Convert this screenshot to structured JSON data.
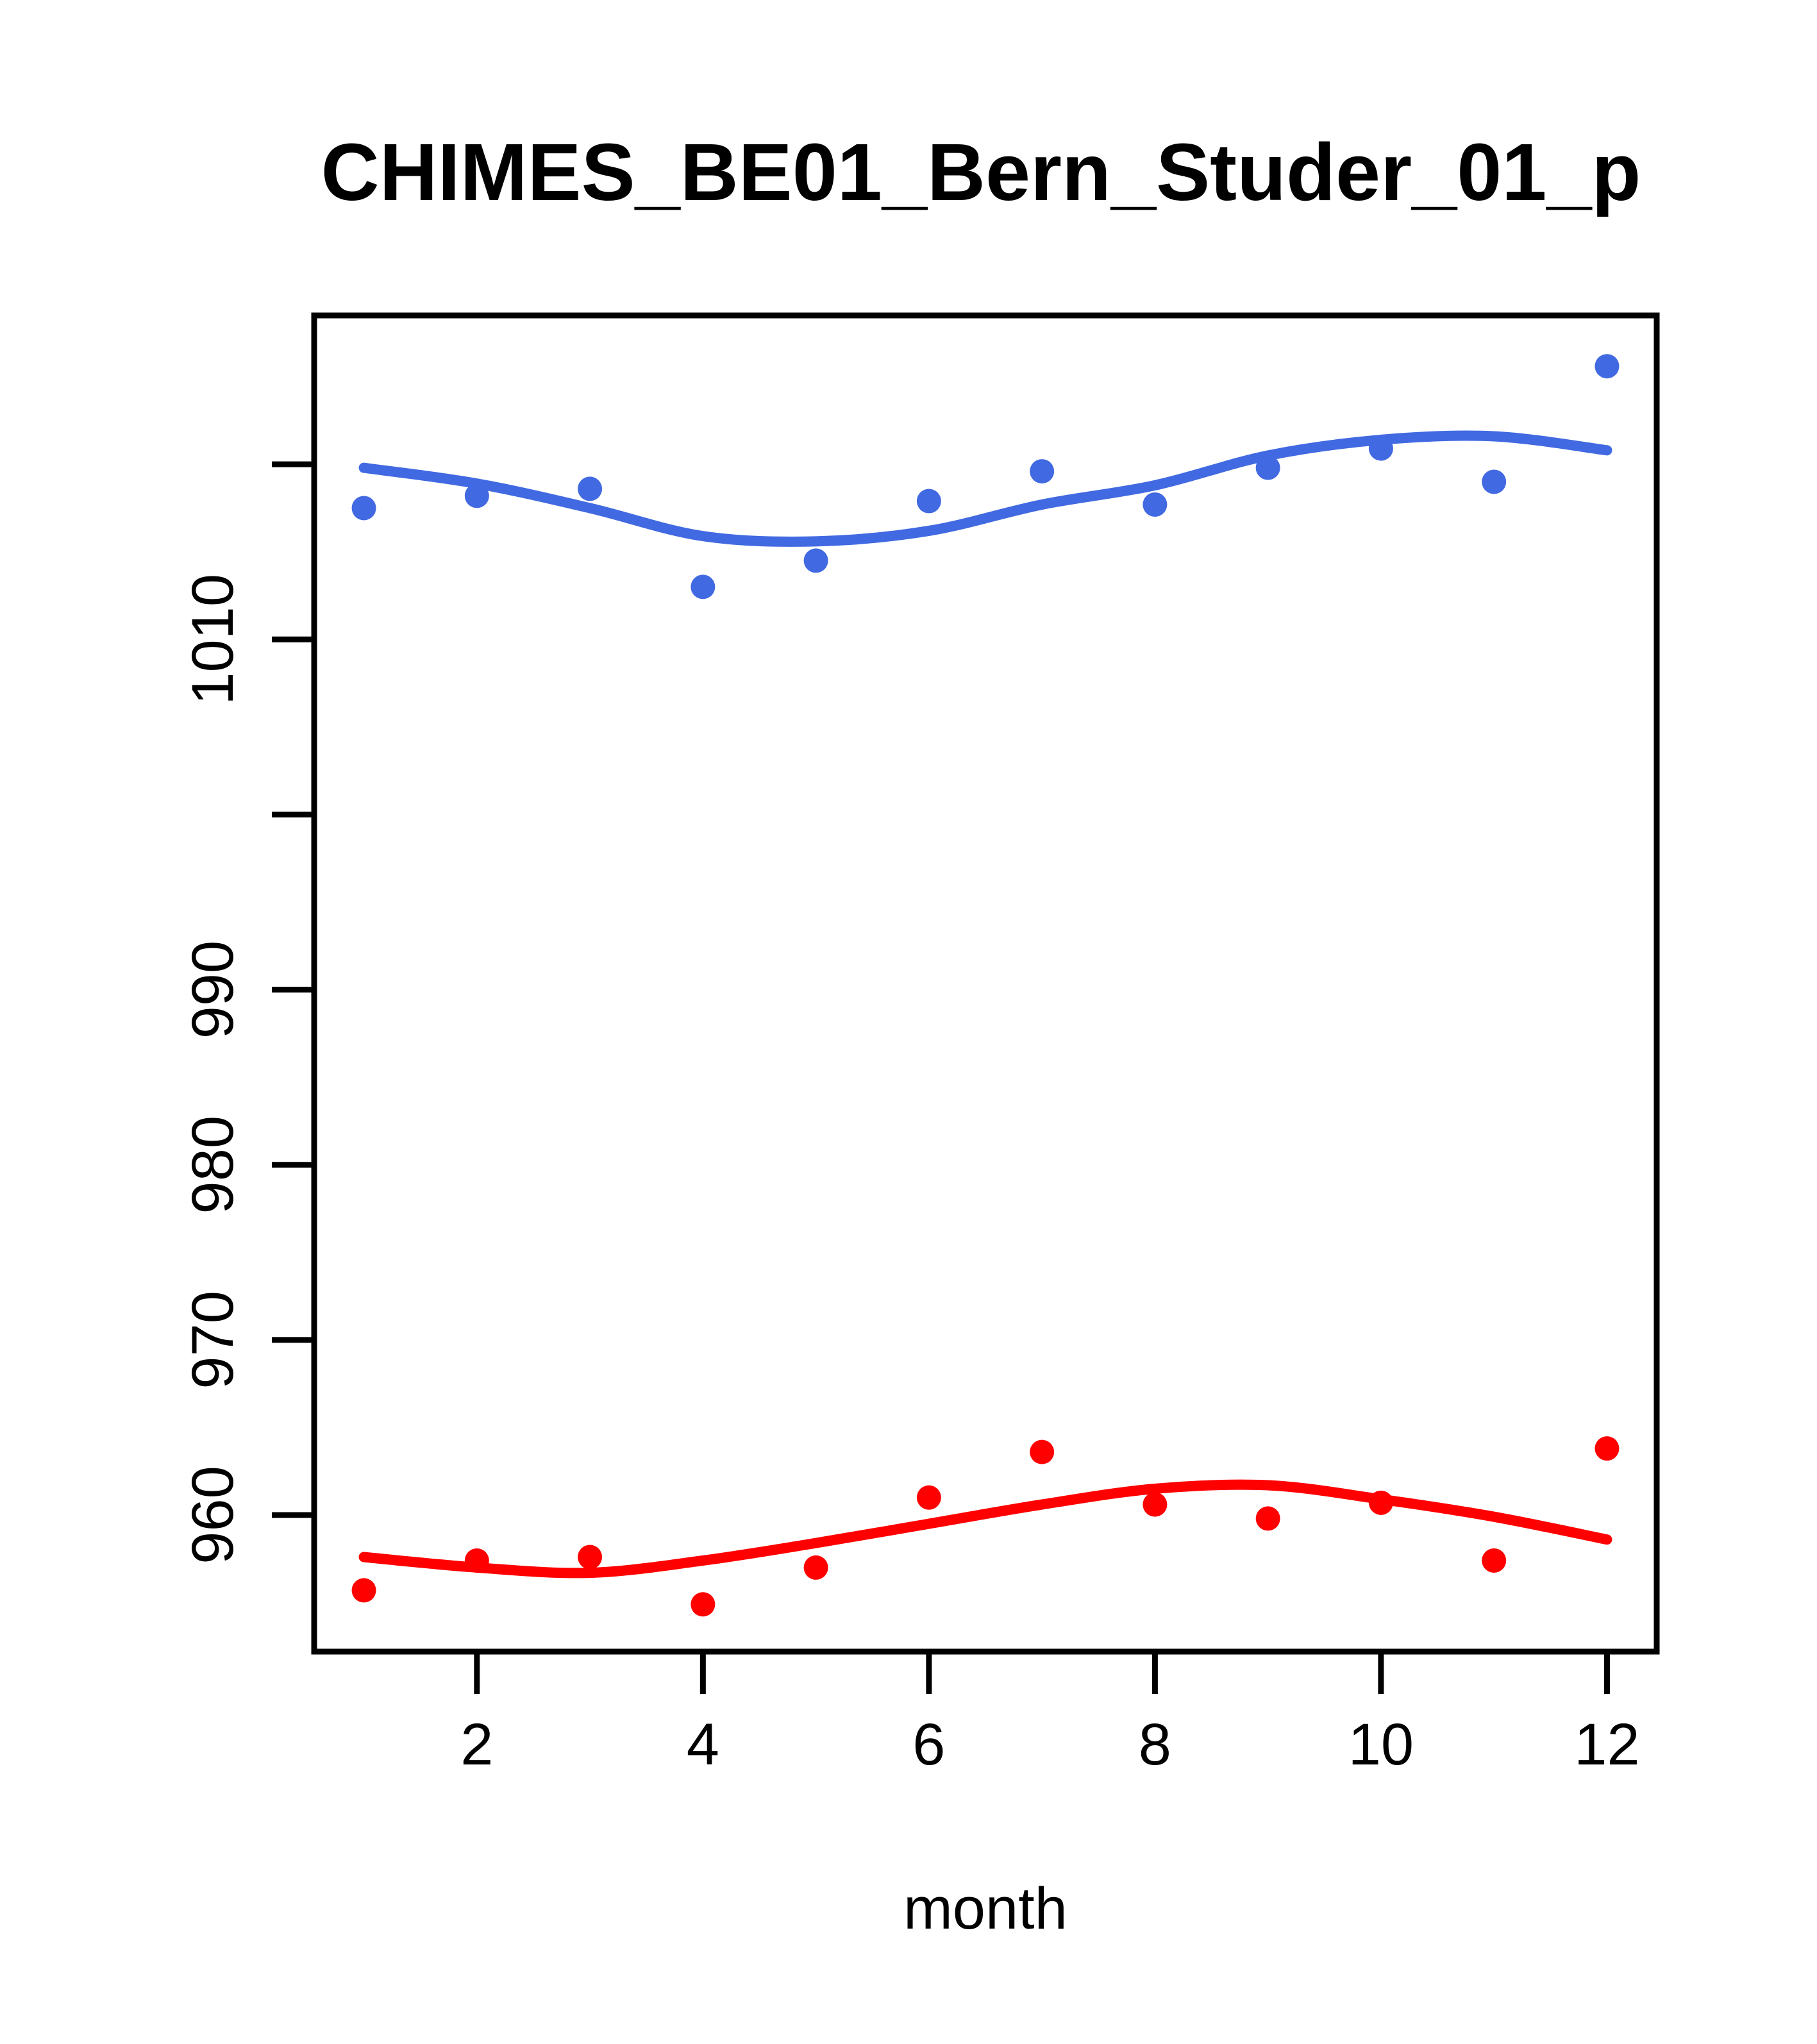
{
  "title": "CHIMES_BE01_Bern_Studer_01_p",
  "xlabel": "month",
  "colors": {
    "blue": "#4169E1",
    "red": "#FF0000",
    "axis": "#000000",
    "background": "#FFFFFF"
  },
  "chart_data": {
    "type": "scatter",
    "title": "CHIMES_BE01_Bern_Studer_01_p",
    "xlabel": "month",
    "ylabel": "",
    "grid": false,
    "legend": null,
    "xlim": [
      0.56,
      12.44
    ],
    "ylim": [
      952.2,
      1028.5
    ],
    "x": [
      1,
      2,
      3,
      4,
      5,
      6,
      7,
      8,
      9,
      10,
      11,
      12
    ],
    "xticks": [
      2,
      4,
      6,
      8,
      10,
      12
    ],
    "yticks": [
      {
        "value": 960,
        "label": "960"
      },
      {
        "value": 970,
        "label": "970"
      },
      {
        "value": 980,
        "label": "980"
      },
      {
        "value": 990,
        "label": "990"
      },
      {
        "value": 1000,
        "label": ""
      },
      {
        "value": 1010,
        "label": "1010"
      },
      {
        "value": 1020,
        "label": ""
      }
    ],
    "series": [
      {
        "name": "blue_series",
        "color": "#4169E1",
        "values": [
          1017.5,
          1018.2,
          1018.6,
          1013.0,
          1014.5,
          1017.9,
          1019.6,
          1017.7,
          1019.8,
          1020.9,
          1019.0,
          1025.6
        ],
        "trend": [
          1019.8,
          1018.9,
          1017.5,
          1015.9,
          1015.6,
          1016.2,
          1017.7,
          1018.8,
          1020.5,
          1021.4,
          1021.6,
          1020.8
        ]
      },
      {
        "name": "red_series",
        "color": "#FF0000",
        "values": [
          955.7,
          957.4,
          957.6,
          954.9,
          957.0,
          961.0,
          963.6,
          960.6,
          959.8,
          960.7,
          957.4,
          963.8
        ],
        "trend": [
          957.6,
          957.0,
          956.7,
          957.4,
          958.4,
          959.5,
          960.6,
          961.5,
          961.7,
          960.9,
          959.9,
          958.6
        ]
      }
    ]
  }
}
